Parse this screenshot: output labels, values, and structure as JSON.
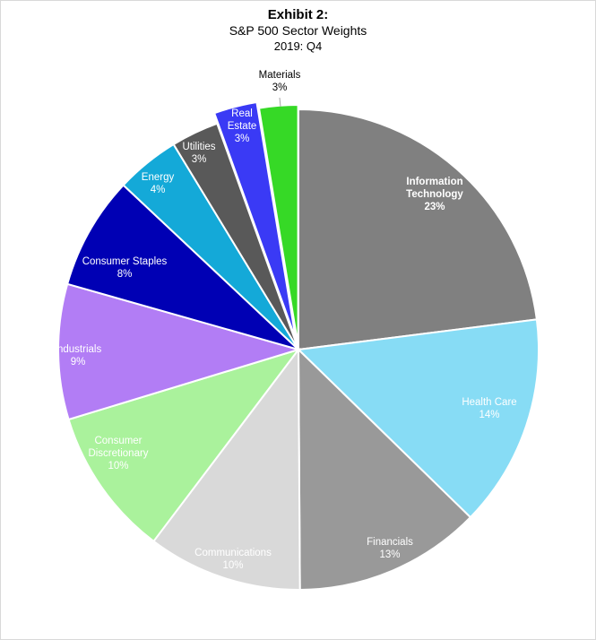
{
  "chart_data": {
    "type": "pie",
    "title": "Exhibit 2:",
    "subtitle": "S&P 500 Sector Weights",
    "period": "2019: Q4",
    "slices": [
      {
        "name": "Information Technology",
        "label_lines": [
          "Information",
          "Technology"
        ],
        "value_label": "23%",
        "value": 23.0,
        "color": "#808080",
        "label_color": "#ffffff",
        "bold": true
      },
      {
        "name": "Health Care",
        "label_lines": [
          "Health Care"
        ],
        "value_label": "14%",
        "value": 14.3,
        "color": "#87dcf5",
        "label_color": "#ffffff",
        "bold": false
      },
      {
        "name": "Financials",
        "label_lines": [
          "Financials"
        ],
        "value_label": "13%",
        "value": 12.6,
        "color": "#999999",
        "label_color": "#ffffff",
        "bold": false
      },
      {
        "name": "Communications",
        "label_lines": [
          "Communications"
        ],
        "value_label": "10%",
        "value": 10.4,
        "color": "#d9d9d9",
        "label_color": "#ffffff",
        "bold": false
      },
      {
        "name": "Consumer Discretionary",
        "label_lines": [
          "Consumer",
          "Discretionary"
        ],
        "value_label": "10%",
        "value": 10.0,
        "color": "#aaf29c",
        "label_color": "#ffffff",
        "bold": false
      },
      {
        "name": "Industrials",
        "label_lines": [
          "Industrials"
        ],
        "value_label": "9%",
        "value": 9.1,
        "color": "#b27df5",
        "label_color": "#ffffff",
        "bold": false
      },
      {
        "name": "Consumer Staples",
        "label_lines": [
          "Consumer Staples"
        ],
        "value_label": "8%",
        "value": 7.6,
        "color": "#0000b4",
        "label_color": "#ffffff",
        "bold": false
      },
      {
        "name": "Energy",
        "label_lines": [
          "Energy"
        ],
        "value_label": "4%",
        "value": 4.3,
        "color": "#14a9d8",
        "label_color": "#ffffff",
        "bold": false
      },
      {
        "name": "Utilities",
        "label_lines": [
          "Utilities"
        ],
        "value_label": "3%",
        "value": 3.2,
        "color": "#595959",
        "label_color": "#ffffff",
        "bold": false
      },
      {
        "name": "Real Estate",
        "label_lines": [
          "Real",
          "Estate"
        ],
        "value_label": "3%",
        "value": 2.9,
        "color": "#3a3af5",
        "label_color": "#ffffff",
        "bold": false
      },
      {
        "name": "Materials",
        "label_lines": [
          "Materials"
        ],
        "value_label": "3%",
        "value": 2.6,
        "color": "#36d926",
        "label_color": "#000000",
        "bold": false
      }
    ]
  }
}
